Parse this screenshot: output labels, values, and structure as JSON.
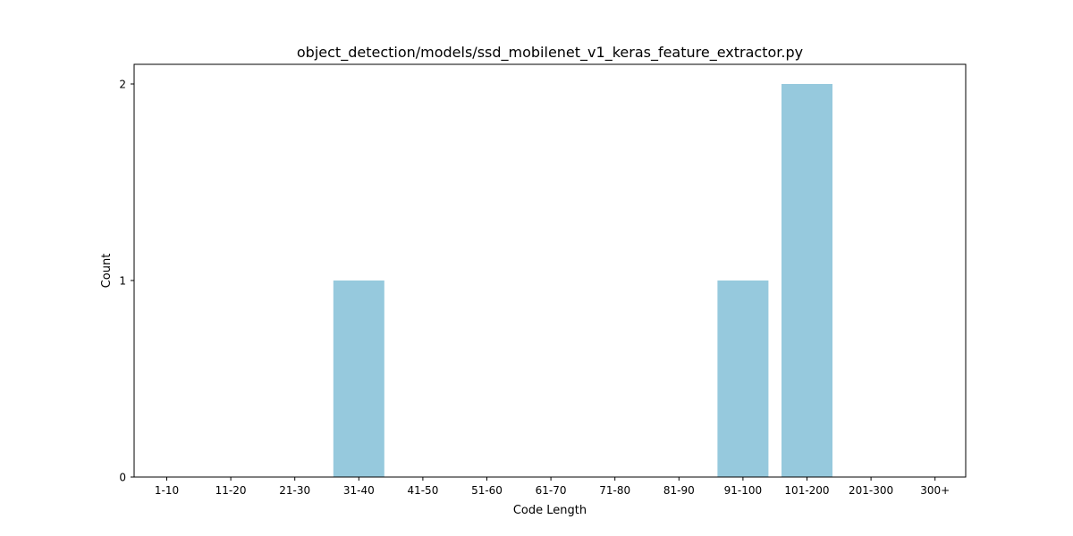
{
  "chart_data": {
    "type": "bar",
    "title": "object_detection/models/ssd_mobilenet_v1_keras_feature_extractor.py",
    "xlabel": "Code Length",
    "ylabel": "Count",
    "categories": [
      "1-10",
      "11-20",
      "21-30",
      "31-40",
      "41-50",
      "51-60",
      "61-70",
      "71-80",
      "81-90",
      "91-100",
      "101-200",
      "201-300",
      "300+"
    ],
    "values": [
      0,
      0,
      0,
      1,
      0,
      0,
      0,
      0,
      0,
      1,
      2,
      0,
      0
    ],
    "yticks": [
      0,
      1,
      2
    ],
    "ylim": [
      0,
      2.1
    ],
    "bar_color": "#96c9dd",
    "grid": false,
    "legend": "none"
  }
}
